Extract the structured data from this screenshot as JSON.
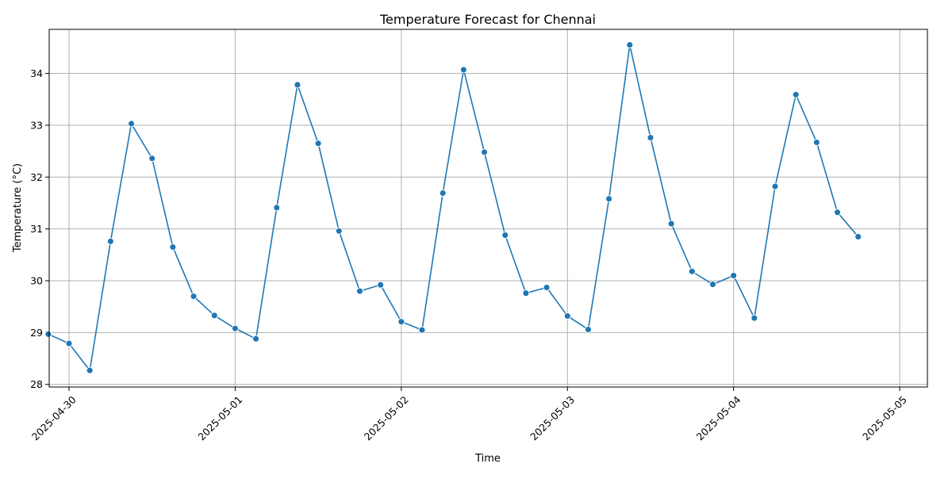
{
  "chart_data": {
    "type": "line",
    "title": "Temperature Forecast for Chennai",
    "xlabel": "Time",
    "ylabel": "Temperature (°C)",
    "x_ticks": [
      "2025-04-30",
      "2025-05-01",
      "2025-05-02",
      "2025-05-03",
      "2025-05-04",
      "2025-05-05"
    ],
    "y_ticks": [
      28,
      29,
      30,
      31,
      32,
      33,
      34
    ],
    "xlim": [
      "2025-04-29 21:08",
      "2025-05-05 04:00"
    ],
    "ylim": [
      27.95,
      34.85
    ],
    "grid": true,
    "color": "#1f77b4",
    "x": [
      "2025-04-29 21:00",
      "2025-04-30 00:00",
      "2025-04-30 03:00",
      "2025-04-30 06:00",
      "2025-04-30 09:00",
      "2025-04-30 12:00",
      "2025-04-30 15:00",
      "2025-04-30 18:00",
      "2025-04-30 21:00",
      "2025-05-01 00:00",
      "2025-05-01 03:00",
      "2025-05-01 06:00",
      "2025-05-01 09:00",
      "2025-05-01 12:00",
      "2025-05-01 15:00",
      "2025-05-01 18:00",
      "2025-05-01 21:00",
      "2025-05-02 00:00",
      "2025-05-02 03:00",
      "2025-05-02 06:00",
      "2025-05-02 09:00",
      "2025-05-02 12:00",
      "2025-05-02 15:00",
      "2025-05-02 18:00",
      "2025-05-02 21:00",
      "2025-05-03 00:00",
      "2025-05-03 03:00",
      "2025-05-03 06:00",
      "2025-05-03 09:00",
      "2025-05-03 12:00",
      "2025-05-03 15:00",
      "2025-05-03 18:00",
      "2025-05-03 21:00",
      "2025-05-04 00:00",
      "2025-05-04 03:00",
      "2025-05-04 06:00",
      "2025-05-04 09:00",
      "2025-05-04 12:00",
      "2025-05-04 15:00",
      "2025-05-04 18:00"
    ],
    "values": [
      28.97,
      28.79,
      28.27,
      30.76,
      33.03,
      32.36,
      30.65,
      29.7,
      29.33,
      29.08,
      28.88,
      31.41,
      33.78,
      32.65,
      30.96,
      29.8,
      29.92,
      29.21,
      29.05,
      31.69,
      34.07,
      32.48,
      30.88,
      29.76,
      29.87,
      29.32,
      29.06,
      31.58,
      34.55,
      32.76,
      31.1,
      30.18,
      29.93,
      30.1,
      29.28,
      31.82,
      33.59,
      32.67,
      31.32,
      30.85
    ]
  }
}
